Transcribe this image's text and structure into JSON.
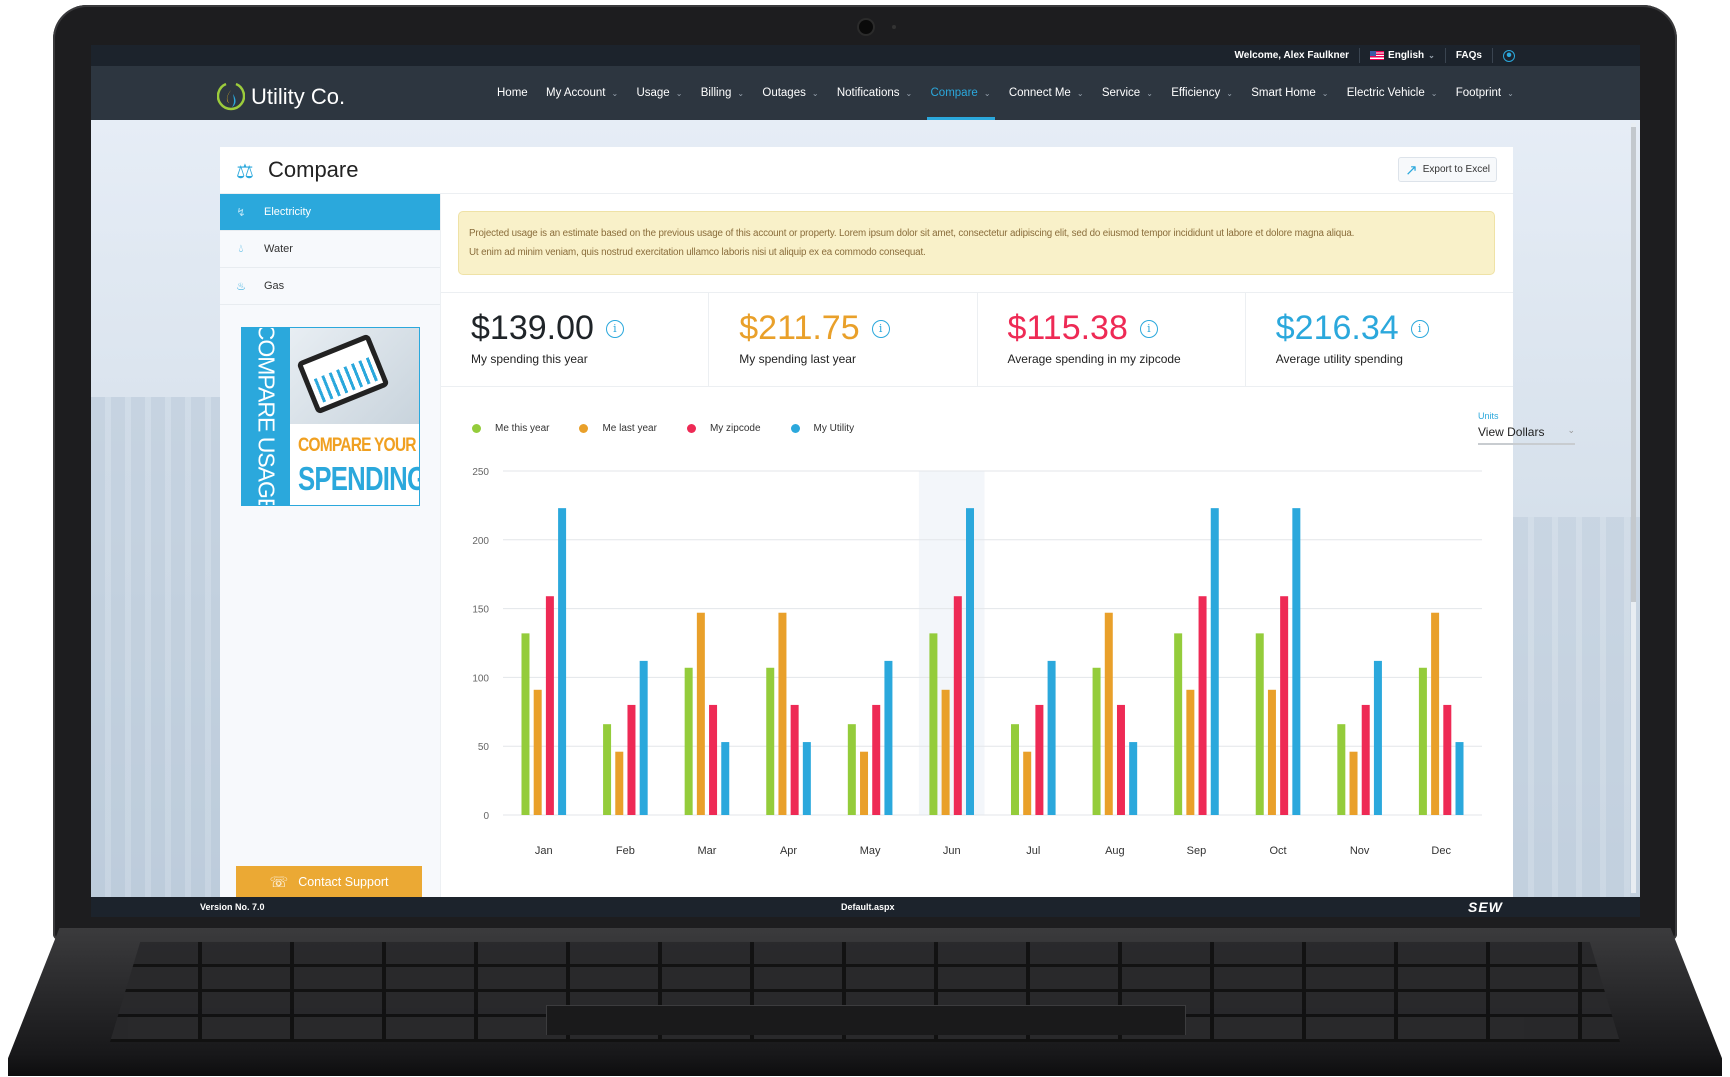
{
  "topbar": {
    "welcome": "Welcome, Alex Faulkner",
    "language": "English",
    "faqs": "FAQs"
  },
  "brand": {
    "name": "Utility Co."
  },
  "nav": [
    {
      "label": "Home",
      "dropdown": false
    },
    {
      "label": "My Account",
      "dropdown": true
    },
    {
      "label": "Usage",
      "dropdown": true
    },
    {
      "label": "Billing",
      "dropdown": true
    },
    {
      "label": "Outages",
      "dropdown": true
    },
    {
      "label": "Notifications",
      "dropdown": true
    },
    {
      "label": "Compare",
      "dropdown": true,
      "active": true
    },
    {
      "label": "Connect Me",
      "dropdown": true
    },
    {
      "label": "Service",
      "dropdown": true
    },
    {
      "label": "Efficiency",
      "dropdown": true
    },
    {
      "label": "Smart Home",
      "dropdown": true
    },
    {
      "label": "Electric Vehicle",
      "dropdown": true
    },
    {
      "label": "Footprint",
      "dropdown": true
    }
  ],
  "page": {
    "title": "Compare",
    "export_label": "Export to Excel"
  },
  "sidebar": {
    "items": [
      {
        "label": "Electricity",
        "icon": "lightning-icon",
        "active": true
      },
      {
        "label": "Water",
        "icon": "water-drop-icon"
      },
      {
        "label": "Gas",
        "icon": "flame-icon"
      }
    ],
    "promo": {
      "vertical": "COMPARE USAGE",
      "line1": "COMPARE YOUR",
      "line2": "SPENDING"
    },
    "contact": "Contact Support"
  },
  "alert": {
    "line1": "Projected usage is an estimate based on the previous usage of this account or property.  Lorem ipsum dolor sit amet, consectetur adipiscing elit, sed do eiusmod tempor incididunt ut labore et dolore magna aliqua.",
    "line2": "Ut enim ad minim veniam, quis nostrud exercitation ullamco laboris nisi ut aliquip ex ea commodo consequat."
  },
  "kpis": [
    {
      "value": "$139.00",
      "label": "My spending this year",
      "color": "#1f2428"
    },
    {
      "value": "$211.75",
      "label": "My spending last year",
      "color": "#e9a02a"
    },
    {
      "value": "$115.38",
      "label": "Average spending in my zipcode",
      "color": "#ee2a55"
    },
    {
      "value": "$216.34",
      "label": "Average utility spending",
      "color": "#2ba8dc"
    }
  ],
  "units": {
    "label": "Units",
    "value": "View Dollars"
  },
  "footer": {
    "version": "Version No. 7.0",
    "page": "Default.aspx",
    "logo": "SEW"
  },
  "chart_data": {
    "type": "bar",
    "categories": [
      "Jan",
      "Feb",
      "Mar",
      "Apr",
      "May",
      "Jun",
      "Jul",
      "Aug",
      "Sep",
      "Oct",
      "Nov",
      "Dec"
    ],
    "ylim": [
      0,
      250
    ],
    "yticks": [
      0,
      50,
      100,
      150,
      200,
      250
    ],
    "grid": true,
    "legend": "top-left",
    "highlighted_category": "Jun",
    "series": [
      {
        "name": "Me this year",
        "color": "#94cc3b",
        "values": [
          132,
          66,
          107,
          107,
          66,
          132,
          66,
          107,
          132,
          132,
          66,
          107
        ]
      },
      {
        "name": "Me last year",
        "color": "#e9a02a",
        "values": [
          91,
          46,
          147,
          147,
          46,
          91,
          46,
          147,
          91,
          91,
          46,
          147
        ]
      },
      {
        "name": "My zipcode",
        "color": "#ee2a55",
        "values": [
          159,
          80,
          80,
          80,
          80,
          159,
          80,
          80,
          159,
          159,
          80,
          80
        ]
      },
      {
        "name": "My Utility",
        "color": "#2ba8dc",
        "values": [
          223,
          112,
          53,
          53,
          112,
          223,
          112,
          53,
          223,
          223,
          112,
          53
        ]
      }
    ]
  }
}
